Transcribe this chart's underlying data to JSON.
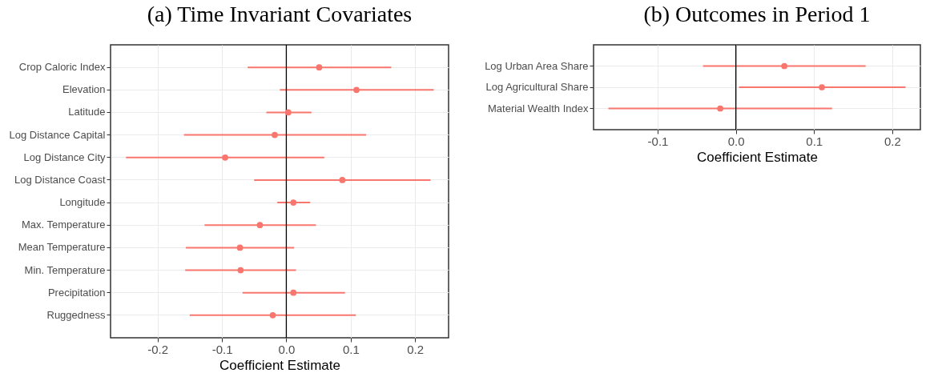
{
  "chart_data": [
    {
      "type": "scatter",
      "orientation": "horizontal",
      "title": "(a) Time Invariant Covariates",
      "xlabel": "Coefficient Estimate",
      "color": "#f8766d",
      "marker": "circle",
      "grid": true,
      "categories": [
        "Crop Caloric Index",
        "Elevation",
        "Latitude",
        "Log Distance Capital",
        "Log Distance City",
        "Log Distance Coast",
        "Longitude",
        "Max. Temperature",
        "Mean Temperature",
        "Min. Temperature",
        "Precipitation",
        "Ruggedness"
      ],
      "values": [
        0.051,
        0.109,
        0.003,
        -0.018,
        -0.095,
        0.087,
        0.011,
        -0.041,
        -0.072,
        -0.071,
        0.011,
        -0.021
      ],
      "errors": [
        [
          -0.06,
          0.163
        ],
        [
          -0.01,
          0.229
        ],
        [
          -0.031,
          0.039
        ],
        [
          -0.159,
          0.124
        ],
        [
          -0.249,
          0.059
        ],
        [
          -0.05,
          0.224
        ],
        [
          -0.014,
          0.037
        ],
        [
          -0.127,
          0.046
        ],
        [
          -0.156,
          0.012
        ],
        [
          -0.157,
          0.015
        ],
        [
          -0.068,
          0.091
        ],
        [
          -0.15,
          0.108
        ]
      ],
      "xlim": [
        -0.273,
        0.252
      ],
      "xticks": [
        -0.2,
        -0.1,
        {
          "value": 0,
          "label": "0.0"
        },
        0.1,
        0.2
      ],
      "ref_lines": [
        {
          "axis": "x",
          "value": 0,
          "color": "#000000"
        }
      ]
    },
    {
      "type": "scatter",
      "orientation": "horizontal",
      "title": "(b) Outcomes in Period 1",
      "xlabel": "Coefficient Estimate",
      "color": "#f8766d",
      "marker": "circle",
      "grid": true,
      "categories": [
        "Log Urban Area Share",
        "Log Agricultural Share",
        "Material Wealth Index"
      ],
      "values": [
        0.062,
        0.11,
        -0.02
      ],
      "errors": [
        [
          -0.042,
          0.166
        ],
        [
          0.004,
          0.217
        ],
        [
          -0.163,
          0.123
        ]
      ],
      "xlim": [
        -0.182,
        0.236
      ],
      "xticks": [
        -0.1,
        {
          "value": 0,
          "label": "0.0"
        },
        0.1,
        0.2
      ],
      "ref_lines": [
        {
          "axis": "x",
          "value": 0,
          "color": "#000000"
        }
      ]
    }
  ]
}
